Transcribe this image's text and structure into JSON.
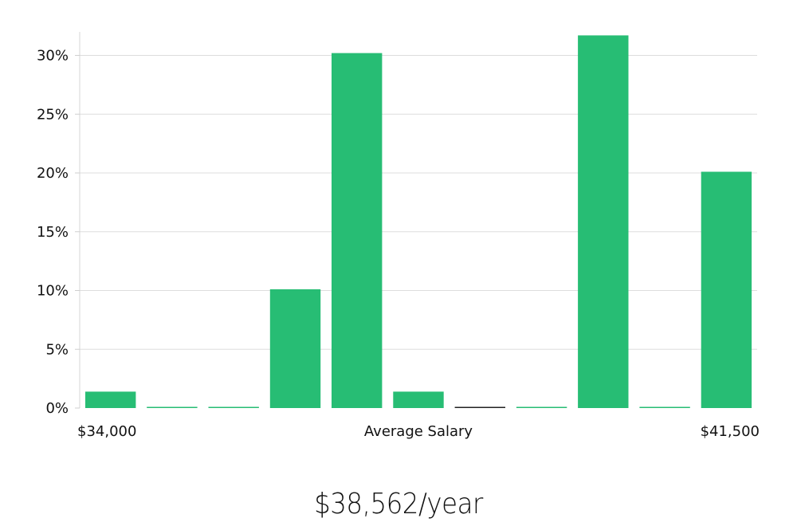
{
  "chart_data": {
    "type": "bar",
    "xlabel": "Average Salary",
    "x_min_label": "$34,000",
    "x_max_label": "$41,500",
    "ylabel": "",
    "ylim": [
      0,
      32
    ],
    "yticks": [
      "0%",
      "5%",
      "10%",
      "15%",
      "20%",
      "25%",
      "30%"
    ],
    "ytick_values": [
      0,
      5,
      10,
      15,
      20,
      25,
      30
    ],
    "values": [
      1.4,
      0,
      0,
      10.1,
      30.2,
      1.4,
      0,
      0,
      31.7,
      0,
      20.1
    ],
    "grid": true,
    "bar_color": "#27bd74",
    "baseline_bar_index": 6,
    "baseline_bar_color": "#222222"
  },
  "summary": {
    "average_salary": "$38,562/year"
  }
}
